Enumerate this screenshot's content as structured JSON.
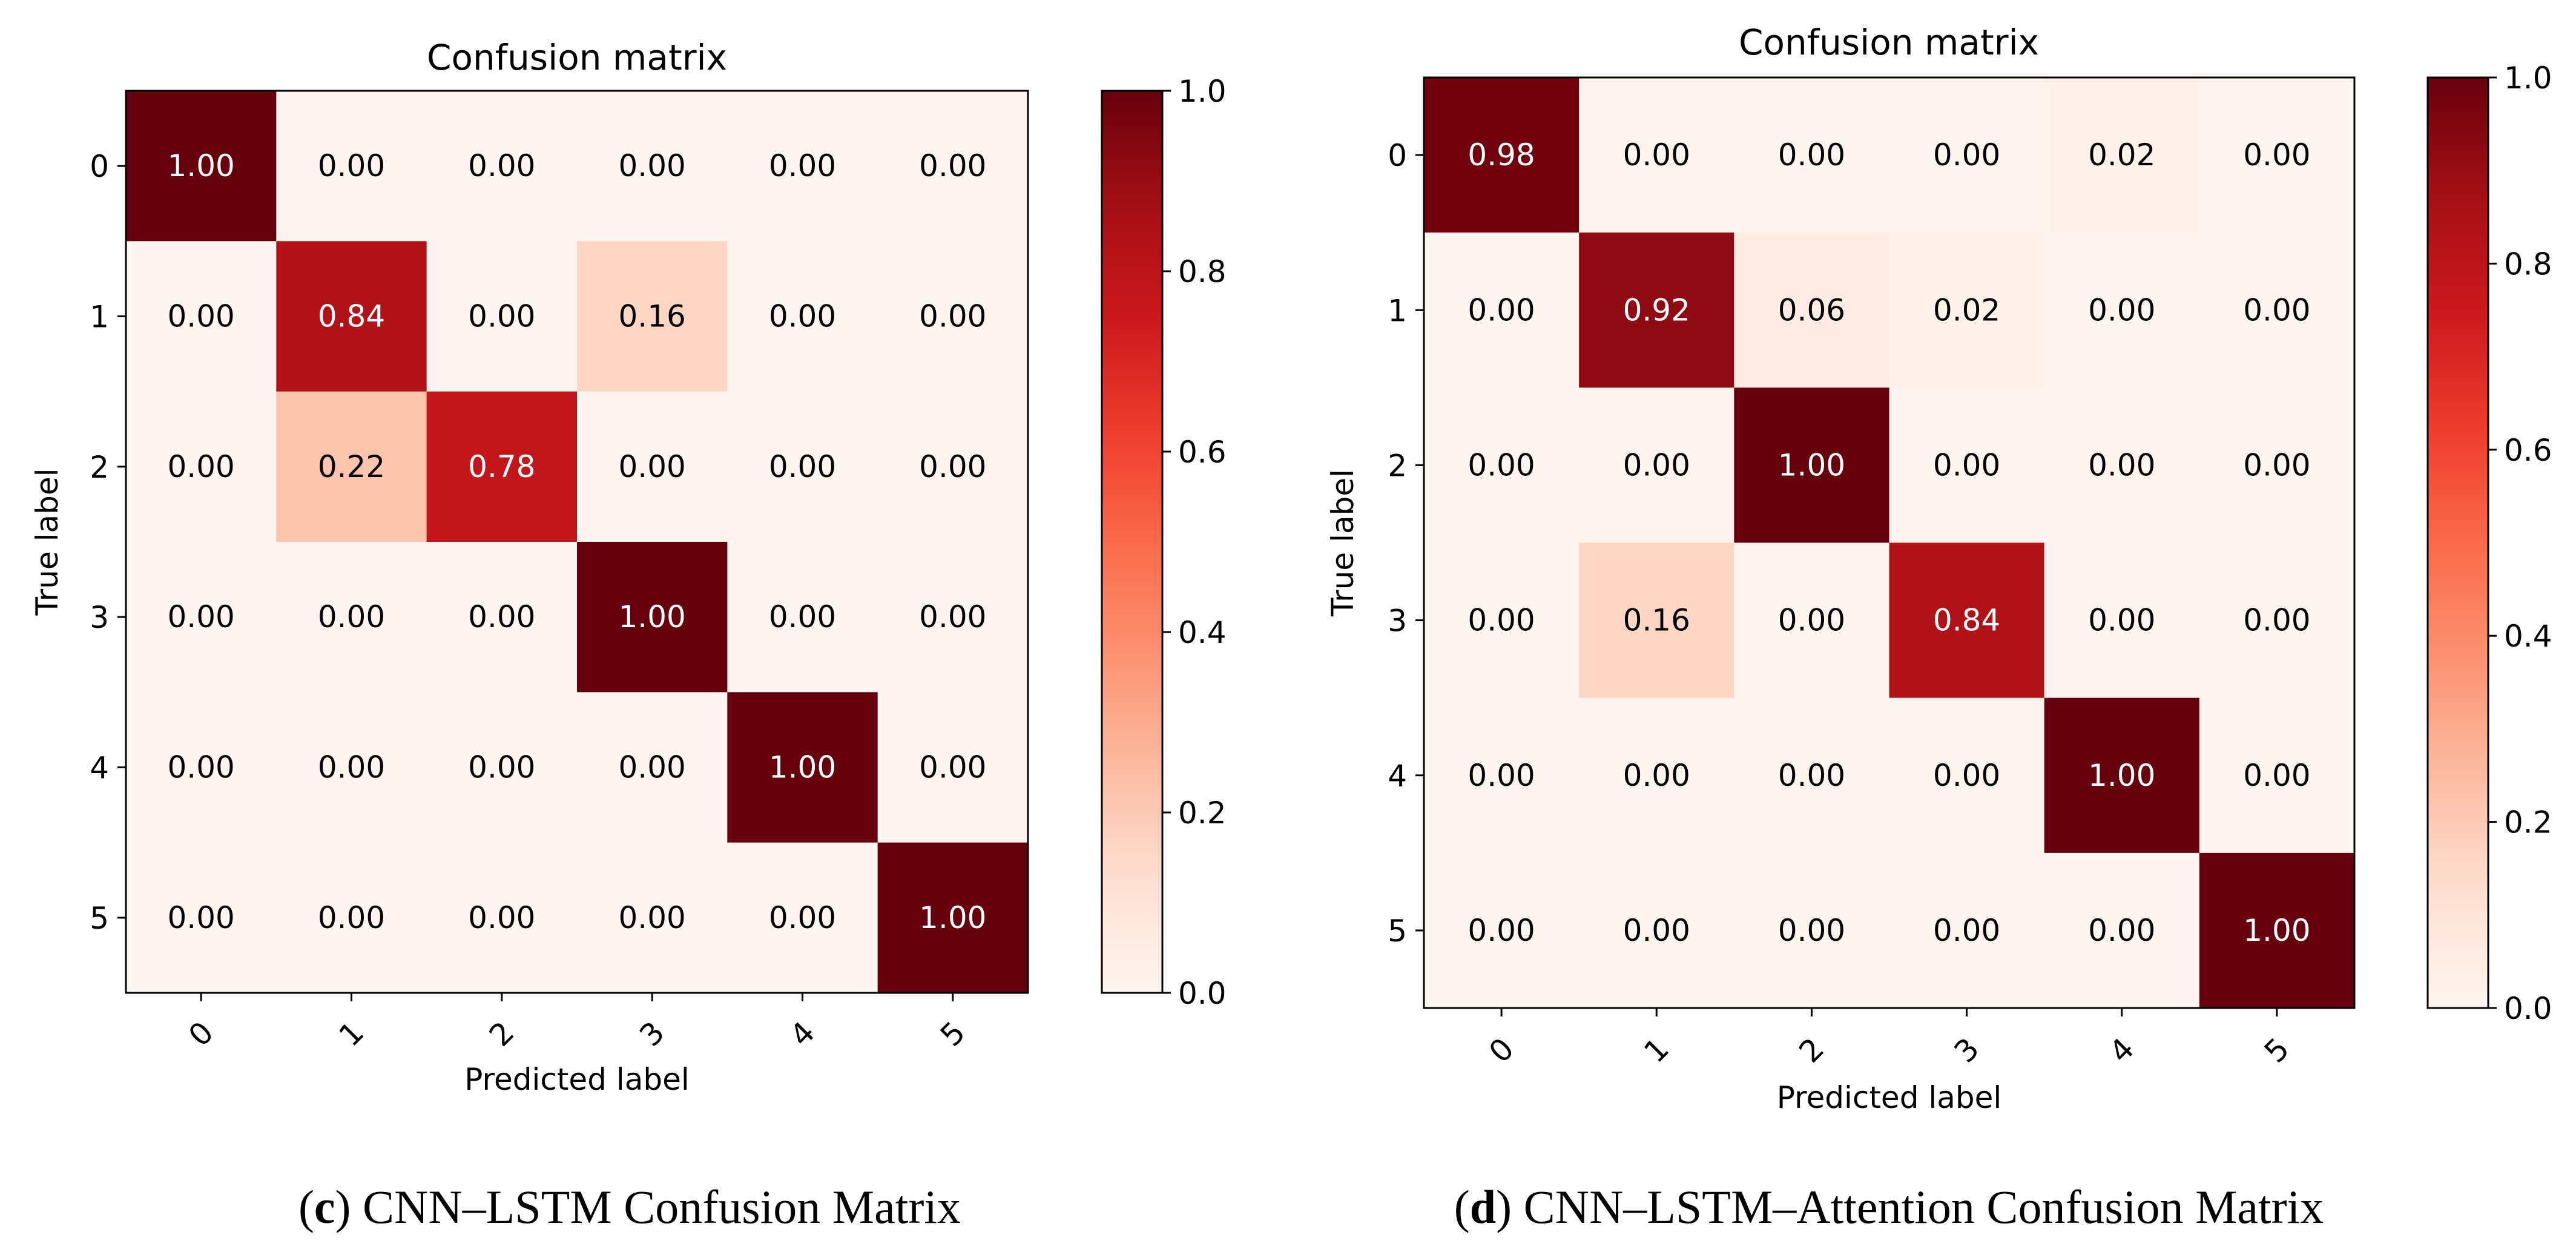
{
  "chart_data": [
    {
      "type": "heatmap",
      "title": "Confusion matrix",
      "xlabel": "Predicted label",
      "ylabel": "True label",
      "x_ticks": [
        "0",
        "1",
        "2",
        "3",
        "4",
        "5"
      ],
      "y_ticks": [
        "0",
        "1",
        "2",
        "3",
        "4",
        "5"
      ],
      "values": [
        [
          1.0,
          0.0,
          0.0,
          0.0,
          0.0,
          0.0
        ],
        [
          0.0,
          0.84,
          0.0,
          0.16,
          0.0,
          0.0
        ],
        [
          0.0,
          0.22,
          0.78,
          0.0,
          0.0,
          0.0
        ],
        [
          0.0,
          0.0,
          0.0,
          1.0,
          0.0,
          0.0
        ],
        [
          0.0,
          0.0,
          0.0,
          0.0,
          1.0,
          0.0
        ],
        [
          0.0,
          0.0,
          0.0,
          0.0,
          0.0,
          1.0
        ]
      ],
      "value_format": "0.00",
      "colormap": "Reds",
      "colorbar": {
        "range": [
          0.0,
          1.0
        ],
        "ticks": [
          "0.0",
          "0.2",
          "0.4",
          "0.6",
          "0.8",
          "1.0"
        ]
      },
      "caption": {
        "letter": "c",
        "prefix": "(",
        "suffix": ")",
        "text": " CNN–LSTM Confusion Matrix"
      }
    },
    {
      "type": "heatmap",
      "title": "Confusion matrix",
      "xlabel": "Predicted label",
      "ylabel": "True label",
      "x_ticks": [
        "0",
        "1",
        "2",
        "3",
        "4",
        "5"
      ],
      "y_ticks": [
        "0",
        "1",
        "2",
        "3",
        "4",
        "5"
      ],
      "values": [
        [
          0.98,
          0.0,
          0.0,
          0.0,
          0.02,
          0.0
        ],
        [
          0.0,
          0.92,
          0.06,
          0.02,
          0.0,
          0.0
        ],
        [
          0.0,
          0.0,
          1.0,
          0.0,
          0.0,
          0.0
        ],
        [
          0.0,
          0.16,
          0.0,
          0.84,
          0.0,
          0.0
        ],
        [
          0.0,
          0.0,
          0.0,
          0.0,
          1.0,
          0.0
        ],
        [
          0.0,
          0.0,
          0.0,
          0.0,
          0.0,
          1.0
        ]
      ],
      "value_format": "0.00",
      "colormap": "Reds",
      "colorbar": {
        "range": [
          0.0,
          1.0
        ],
        "ticks": [
          "0.0",
          "0.2",
          "0.4",
          "0.6",
          "0.8",
          "1.0"
        ]
      },
      "caption": {
        "letter": "d",
        "prefix": "(",
        "suffix": ")",
        "text": " CNN–LSTM–Attention Confusion Matrix"
      }
    }
  ]
}
